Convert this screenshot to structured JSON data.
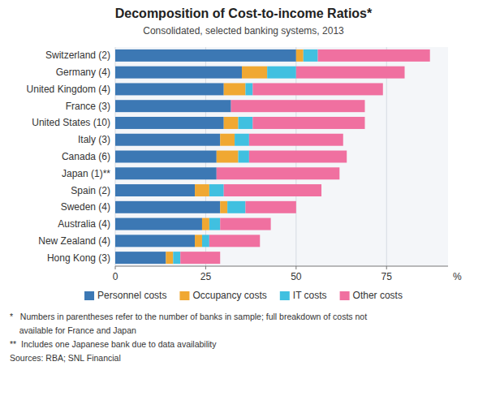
{
  "chart_data": {
    "type": "bar",
    "orientation": "horizontal",
    "stacked": true,
    "title": "Decomposition of Cost-to-income Ratios*",
    "subtitle": "Consolidated, selected banking systems, 2013",
    "categories": [
      "Switzerland (2)",
      "Germany (4)",
      "United Kingdom (4)",
      "France (3)",
      "United States (10)",
      "Italy (3)",
      "Canada (6)",
      "Japan (1)**",
      "Spain (2)",
      "Sweden (4)",
      "Australia (4)",
      "New Zealand (4)",
      "Hong Kong (3)"
    ],
    "series": [
      {
        "name": "Personnel costs",
        "color": "#3c78b4",
        "values": [
          50,
          35,
          30,
          32,
          30,
          29,
          28,
          28,
          22,
          29,
          24,
          22,
          14
        ]
      },
      {
        "name": "Occupancy costs",
        "color": "#f0a832",
        "values": [
          2,
          7,
          6,
          0,
          4,
          4,
          6,
          0,
          4,
          2,
          2,
          2,
          2
        ]
      },
      {
        "name": "IT costs",
        "color": "#40c0e0",
        "values": [
          4,
          8,
          2,
          0,
          4,
          4,
          3,
          0,
          4,
          5,
          3,
          2,
          2
        ]
      },
      {
        "name": "Other costs",
        "color": "#f070a0",
        "values": [
          31,
          30,
          36,
          37,
          31,
          26,
          27,
          34,
          27,
          14,
          14,
          14,
          11
        ]
      }
    ],
    "xlim": [
      0,
      92
    ],
    "xticks": [
      0,
      25,
      50,
      75
    ],
    "xlabel": "%",
    "grid": true,
    "legend": "bottom",
    "annotations": [
      "*   Numbers in parentheses refer to the number of banks in sample; full breakdown of costs not",
      "    available for France and Japan",
      "**  Includes one Japanese bank due to data availability",
      "Sources: RBA; SNL Financial"
    ]
  }
}
